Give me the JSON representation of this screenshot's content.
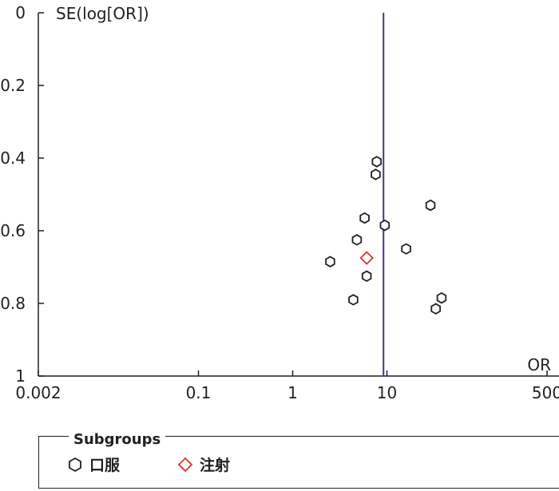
{
  "chart_data": {
    "type": "scatter",
    "subtype": "funnel-plot",
    "xlabel": "OR",
    "ylabel": "SE(log[OR])",
    "x_scale": "log",
    "xlim": [
      0.002,
      500
    ],
    "ylim": [
      0,
      1
    ],
    "y_inverted": true,
    "x_ticks": [
      0.002,
      0.1,
      1,
      10,
      500
    ],
    "x_tick_labels": [
      "0.002",
      "0.1",
      "1",
      "10",
      "500"
    ],
    "y_ticks": [
      0,
      0.2,
      0.4,
      0.6,
      0.8,
      1
    ],
    "y_tick_labels": [
      "0",
      "0.2",
      "0.4",
      "0.6",
      "0.8",
      "1"
    ],
    "reference_line": {
      "x": 9.2,
      "color": "#3d3a8f"
    },
    "legend": {
      "title": "Subgroups",
      "placement": "bottom",
      "entries": [
        {
          "label": "口服",
          "marker": "hexagon",
          "color": "#231f20"
        },
        {
          "label": "注射",
          "marker": "diamond",
          "color": "#d7342b"
        }
      ]
    },
    "series": [
      {
        "name": "口服",
        "marker": "hexagon",
        "color": "#231f20",
        "points": [
          {
            "x": 7.8,
            "y": 0.41
          },
          {
            "x": 7.6,
            "y": 0.445
          },
          {
            "x": 29,
            "y": 0.53
          },
          {
            "x": 5.8,
            "y": 0.565
          },
          {
            "x": 9.5,
            "y": 0.585
          },
          {
            "x": 4.8,
            "y": 0.625
          },
          {
            "x": 16,
            "y": 0.65
          },
          {
            "x": 2.5,
            "y": 0.685
          },
          {
            "x": 6.1,
            "y": 0.725
          },
          {
            "x": 4.4,
            "y": 0.79
          },
          {
            "x": 38,
            "y": 0.785
          },
          {
            "x": 33,
            "y": 0.815
          }
        ]
      },
      {
        "name": "注射",
        "marker": "diamond",
        "color": "#d7342b",
        "points": [
          {
            "x": 6.1,
            "y": 0.675
          }
        ]
      }
    ]
  }
}
